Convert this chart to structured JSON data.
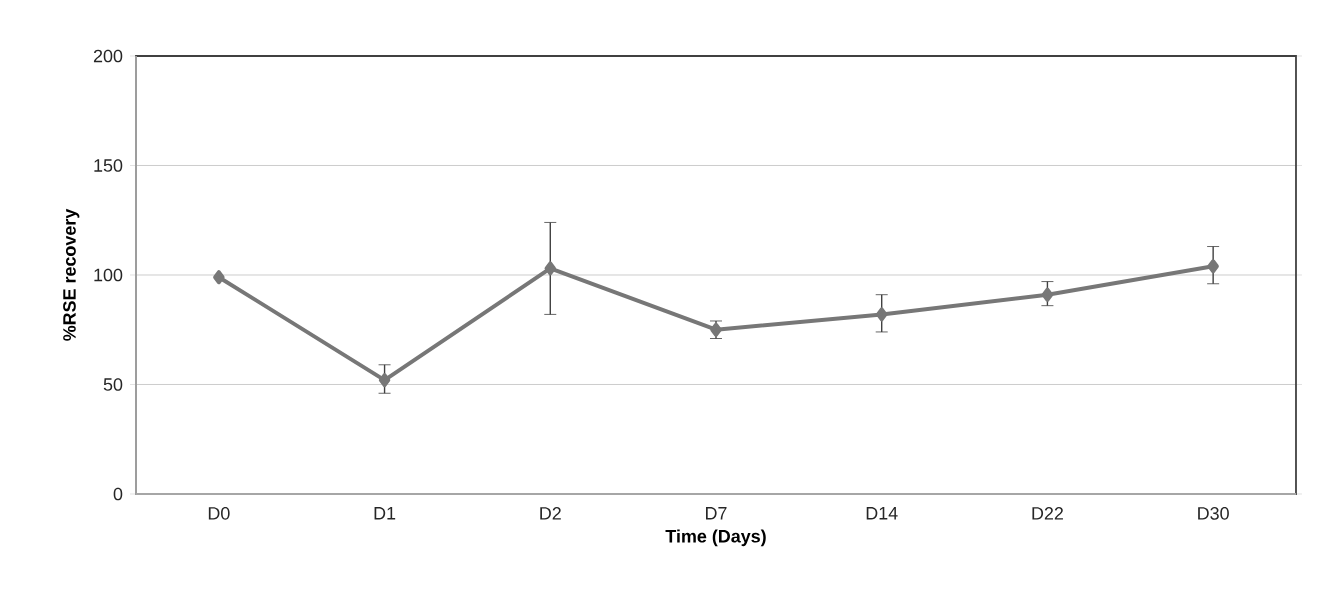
{
  "chart_data": {
    "type": "line",
    "xlabel": "Time (Days)",
    "ylabel": "%RSE recovery",
    "categories": [
      "D0",
      "D1",
      "D2",
      "D7",
      "D14",
      "D22",
      "D30"
    ],
    "series": [
      {
        "color": "#777777",
        "values": [
          99,
          52,
          103,
          75,
          82,
          91,
          104
        ],
        "errors": [
          null,
          [
            46,
            59
          ],
          [
            82,
            124
          ],
          [
            71,
            79
          ],
          [
            74,
            91
          ],
          [
            86,
            97
          ],
          [
            96,
            113
          ]
        ]
      }
    ],
    "ylim": [
      0,
      200
    ],
    "yticks": [
      0,
      50,
      100,
      150,
      200
    ],
    "grid": "y",
    "marker": "diamond",
    "line_style": "solid"
  }
}
